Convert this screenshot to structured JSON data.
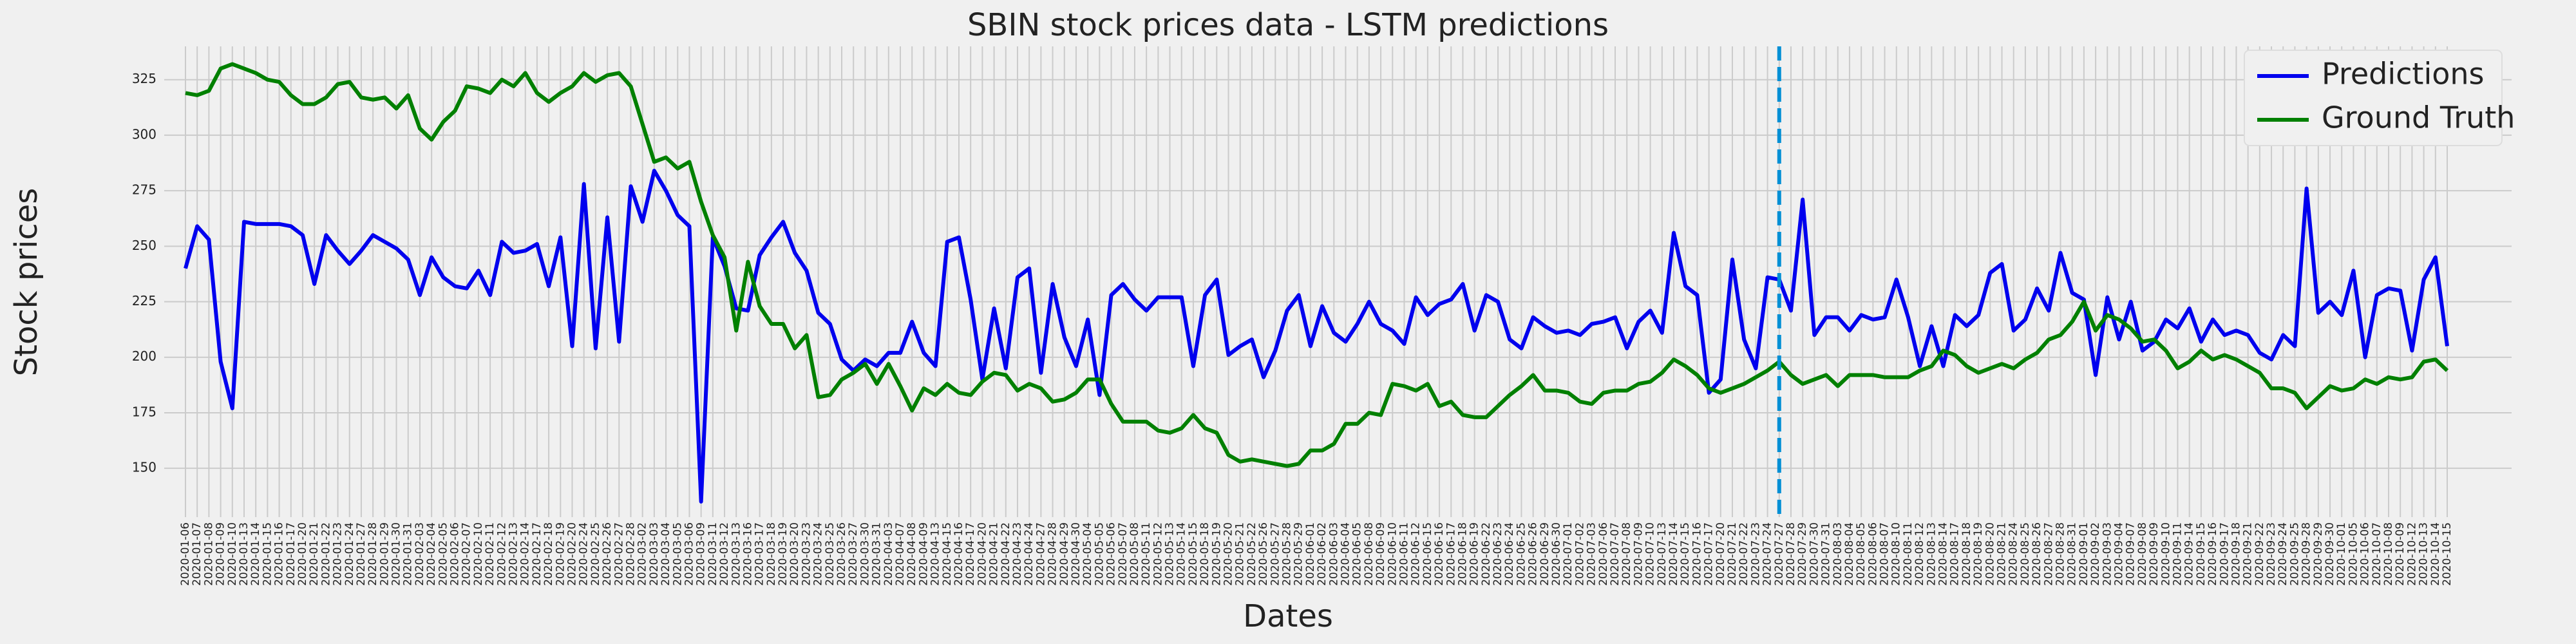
{
  "chart_data": {
    "type": "line",
    "title": "SBIN stock prices data - LSTM predictions",
    "xlabel": "Dates",
    "ylabel": "Stock prices",
    "categories": [
      "2020-01-06",
      "2020-01-07",
      "2020-01-08",
      "2020-01-09",
      "2020-01-10",
      "2020-01-13",
      "2020-01-14",
      "2020-01-15",
      "2020-01-16",
      "2020-01-17",
      "2020-01-20",
      "2020-01-21",
      "2020-01-22",
      "2020-01-23",
      "2020-01-24",
      "2020-01-27",
      "2020-01-28",
      "2020-01-29",
      "2020-01-30",
      "2020-01-31",
      "2020-02-03",
      "2020-02-04",
      "2020-02-05",
      "2020-02-06",
      "2020-02-07",
      "2020-02-10",
      "2020-02-11",
      "2020-02-12",
      "2020-02-13",
      "2020-02-14",
      "2020-02-17",
      "2020-02-18",
      "2020-02-19",
      "2020-02-20",
      "2020-02-24",
      "2020-02-25",
      "2020-02-26",
      "2020-02-27",
      "2020-02-28",
      "2020-03-02",
      "2020-03-03",
      "2020-03-04",
      "2020-03-05",
      "2020-03-06",
      "2020-03-09",
      "2020-03-11",
      "2020-03-12",
      "2020-03-13",
      "2020-03-16",
      "2020-03-17",
      "2020-03-18",
      "2020-03-19",
      "2020-03-20",
      "2020-03-23",
      "2020-03-24",
      "2020-03-25",
      "2020-03-26",
      "2020-03-27",
      "2020-03-30",
      "2020-03-31",
      "2020-04-03",
      "2020-04-07",
      "2020-04-08",
      "2020-04-09",
      "2020-04-13",
      "2020-04-15",
      "2020-04-16",
      "2020-04-17",
      "2020-04-20",
      "2020-04-21",
      "2020-04-22",
      "2020-04-23",
      "2020-04-24",
      "2020-04-27",
      "2020-04-28",
      "2020-04-29",
      "2020-04-30",
      "2020-05-04",
      "2020-05-05",
      "2020-05-06",
      "2020-05-07",
      "2020-05-08",
      "2020-05-11",
      "2020-05-12",
      "2020-05-13",
      "2020-05-14",
      "2020-05-15",
      "2020-05-18",
      "2020-05-19",
      "2020-05-20",
      "2020-05-21",
      "2020-05-22",
      "2020-05-26",
      "2020-05-27",
      "2020-05-28",
      "2020-05-29",
      "2020-06-01",
      "2020-06-02",
      "2020-06-03",
      "2020-06-04",
      "2020-06-05",
      "2020-06-08",
      "2020-06-09",
      "2020-06-10",
      "2020-06-11",
      "2020-06-12",
      "2020-06-15",
      "2020-06-16",
      "2020-06-17",
      "2020-06-18",
      "2020-06-19",
      "2020-06-22",
      "2020-06-23",
      "2020-06-24",
      "2020-06-25",
      "2020-06-26",
      "2020-06-29",
      "2020-06-30",
      "2020-07-01",
      "2020-07-02",
      "2020-07-03",
      "2020-07-06",
      "2020-07-07",
      "2020-07-08",
      "2020-07-09",
      "2020-07-10",
      "2020-07-13",
      "2020-07-14",
      "2020-07-15",
      "2020-07-16",
      "2020-07-17",
      "2020-07-20",
      "2020-07-21",
      "2020-07-22",
      "2020-07-23",
      "2020-07-24",
      "2020-07-27",
      "2020-07-28",
      "2020-07-29",
      "2020-07-30",
      "2020-07-31",
      "2020-08-03",
      "2020-08-04",
      "2020-08-05",
      "2020-08-06",
      "2020-08-07",
      "2020-08-10",
      "2020-08-11",
      "2020-08-12",
      "2020-08-13",
      "2020-08-14",
      "2020-08-17",
      "2020-08-18",
      "2020-08-19",
      "2020-08-20",
      "2020-08-21",
      "2020-08-24",
      "2020-08-25",
      "2020-08-26",
      "2020-08-27",
      "2020-08-28",
      "2020-08-31",
      "2020-09-01",
      "2020-09-02",
      "2020-09-03",
      "2020-09-04",
      "2020-09-07",
      "2020-09-08",
      "2020-09-09",
      "2020-09-10",
      "2020-09-11",
      "2020-09-14",
      "2020-09-15",
      "2020-09-16",
      "2020-09-17",
      "2020-09-18",
      "2020-09-21",
      "2020-09-22",
      "2020-09-23",
      "2020-09-24",
      "2020-09-25",
      "2020-09-28",
      "2020-09-29",
      "2020-09-30",
      "2020-10-01",
      "2020-10-05",
      "2020-10-06",
      "2020-10-07",
      "2020-10-08",
      "2020-10-09",
      "2020-10-12",
      "2020-10-13",
      "2020-10-14",
      "2020-10-15"
    ],
    "series": [
      {
        "name": "Predictions",
        "color": "#0000ee",
        "values": [
          240,
          259,
          253,
          198,
          177,
          261,
          260,
          260,
          260,
          259,
          255,
          233,
          255,
          248,
          242,
          248,
          255,
          252,
          249,
          244,
          228,
          245,
          236,
          232,
          231,
          239,
          228,
          252,
          247,
          248,
          251,
          232,
          254,
          205,
          278,
          204,
          263,
          207,
          277,
          261,
          284,
          275,
          264,
          259,
          135,
          254,
          241,
          222,
          221,
          246,
          254,
          261,
          247,
          239,
          220,
          215,
          199,
          194,
          199,
          196,
          202,
          202,
          216,
          202,
          196,
          252,
          254,
          226,
          190,
          222,
          195,
          236,
          240,
          193,
          233,
          209,
          196,
          217,
          183,
          228,
          233,
          226,
          221,
          227,
          227,
          227,
          196,
          228,
          235,
          201,
          205,
          208,
          191,
          203,
          221,
          228,
          205,
          223,
          211,
          207,
          215,
          225,
          215,
          212,
          206,
          227,
          219,
          224,
          226,
          233,
          212,
          228,
          225,
          208,
          204,
          218,
          214,
          211,
          212,
          210,
          215,
          216,
          218,
          204,
          216,
          221,
          211,
          256,
          232,
          228,
          184,
          190,
          244,
          208,
          195,
          236,
          235,
          221,
          271,
          210,
          218,
          218,
          212,
          219,
          217,
          218,
          235,
          218,
          196,
          214,
          196,
          219,
          214,
          219,
          238,
          242,
          212,
          217,
          231,
          221,
          247,
          229,
          226,
          192,
          227,
          208,
          225,
          203,
          207,
          217,
          213,
          222,
          207,
          217,
          210,
          212,
          210,
          202,
          199,
          210,
          205,
          276,
          220,
          225,
          219,
          239,
          200,
          228,
          231,
          230,
          203,
          235,
          245,
          205
        ]
      },
      {
        "name": "Ground Truth",
        "color": "#008000",
        "values": [
          319,
          318,
          320,
          330,
          332,
          330,
          328,
          325,
          324,
          318,
          314,
          314,
          317,
          323,
          324,
          317,
          316,
          317,
          312,
          318,
          303,
          298,
          306,
          311,
          322,
          321,
          319,
          325,
          322,
          328,
          319,
          315,
          319,
          322,
          328,
          324,
          327,
          328,
          322,
          305,
          288,
          290,
          285,
          288,
          270,
          255,
          245,
          212,
          243,
          223,
          215,
          215,
          204,
          210,
          182,
          183,
          190,
          193,
          197,
          188,
          197,
          187,
          176,
          186,
          183,
          188,
          184,
          183,
          189,
          193,
          192,
          185,
          188,
          186,
          180,
          181,
          184,
          190,
          190,
          179,
          171,
          171,
          171,
          167,
          166,
          168,
          174,
          168,
          166,
          156,
          153,
          154,
          153,
          152,
          151,
          152,
          158,
          158,
          161,
          170,
          170,
          175,
          174,
          188,
          187,
          185,
          188,
          178,
          180,
          174,
          173,
          173,
          178,
          183,
          187,
          192,
          185,
          185,
          184,
          180,
          179,
          184,
          185,
          185,
          188,
          189,
          193,
          199,
          196,
          192,
          186,
          184,
          186,
          188,
          191,
          194,
          198,
          192,
          188,
          190,
          192,
          187,
          192,
          192,
          192,
          191,
          191,
          191,
          194,
          196,
          203,
          201,
          196,
          193,
          195,
          197,
          195,
          199,
          202,
          208,
          210,
          216,
          225,
          212,
          219,
          217,
          213,
          207,
          208,
          203,
          195,
          198,
          203,
          199,
          201,
          199,
          196,
          193,
          186,
          186,
          184,
          177,
          182,
          187,
          185,
          186,
          190,
          188,
          191,
          190,
          191,
          198,
          199,
          194
        ]
      }
    ],
    "vline": {
      "x": "2020-07-27",
      "color": "#008fd5",
      "style": "dashed"
    },
    "ylim": [
      128,
      340
    ],
    "yticks": [
      150,
      175,
      200,
      225,
      250,
      275,
      300,
      325
    ],
    "grid": true,
    "legend": "upper right"
  }
}
